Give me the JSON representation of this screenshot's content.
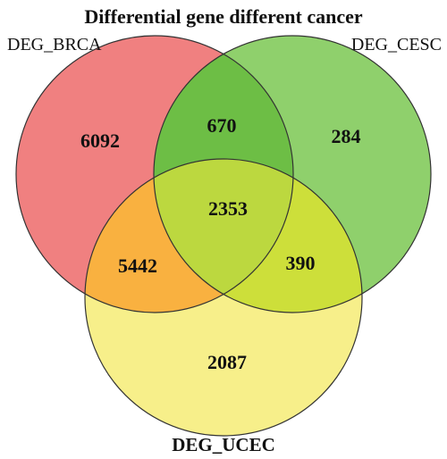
{
  "title": "Differential gene different cancer",
  "sets": [
    {
      "name": "DEG_BRCA",
      "color": "#f08080"
    },
    {
      "name": "DEG_CESC",
      "color": "#8fd06c"
    },
    {
      "name": "DEG_UCEC",
      "color": "#f7ef8a"
    }
  ],
  "regions": {
    "brca_only": "6092",
    "cesc_only": "284",
    "ucec_only": "2087",
    "brca_cesc": "670",
    "brca_ucec": "5442",
    "cesc_ucec": "390",
    "all_three": "2353"
  },
  "region_colors": {
    "brca_cesc": "#6dbe45",
    "brca_ucec": "#f9b140",
    "cesc_ucec": "#cddf3a",
    "all_three": "#bcd83f"
  }
}
